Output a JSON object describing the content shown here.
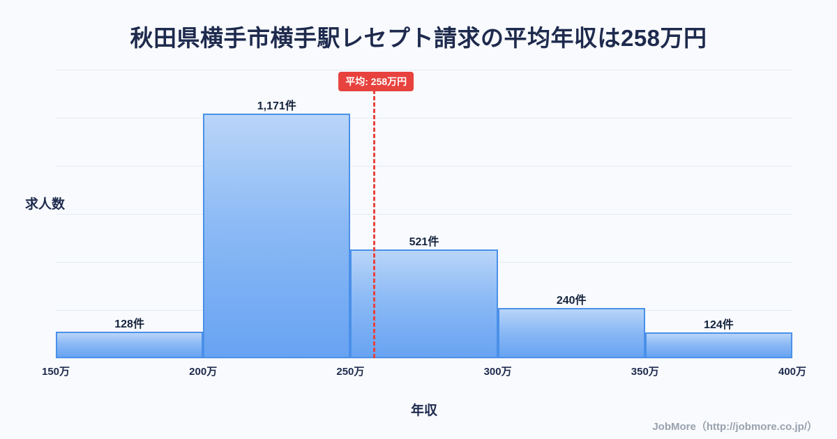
{
  "page": {
    "title": "秋田県横手市横手駅レセプト請求の平均年収は258万円"
  },
  "chart_data": {
    "type": "bar",
    "title": "秋田県横手市横手駅レセプト請求の平均年収は258万円",
    "categories": [
      "150万-200万",
      "200万-250万",
      "250万-300万",
      "300万-350万",
      "350万-400万"
    ],
    "values": [
      128,
      1171,
      521,
      240,
      124
    ],
    "value_labels": [
      "128件",
      "1,171件",
      "521件",
      "240件",
      "124件"
    ],
    "x_ticks": [
      "150万",
      "200万",
      "250万",
      "300万",
      "350万",
      "400万"
    ],
    "x_range": [
      150,
      400
    ],
    "xlabel": "年収",
    "ylabel": "求人数",
    "ylim": [
      0,
      1380
    ],
    "grid": true,
    "legend": false,
    "average_line": {
      "value": 258,
      "label": "平均: 258万円",
      "color": "#e8423e"
    },
    "colors": {
      "bar_fill_top": "#b9d5f8",
      "bar_fill_bottom": "#68a3f2",
      "bar_border": "#4a90e9",
      "background": "#f8fafd"
    }
  },
  "footer": {
    "credit": "JobMore（http://jobmore.co.jp/）"
  }
}
